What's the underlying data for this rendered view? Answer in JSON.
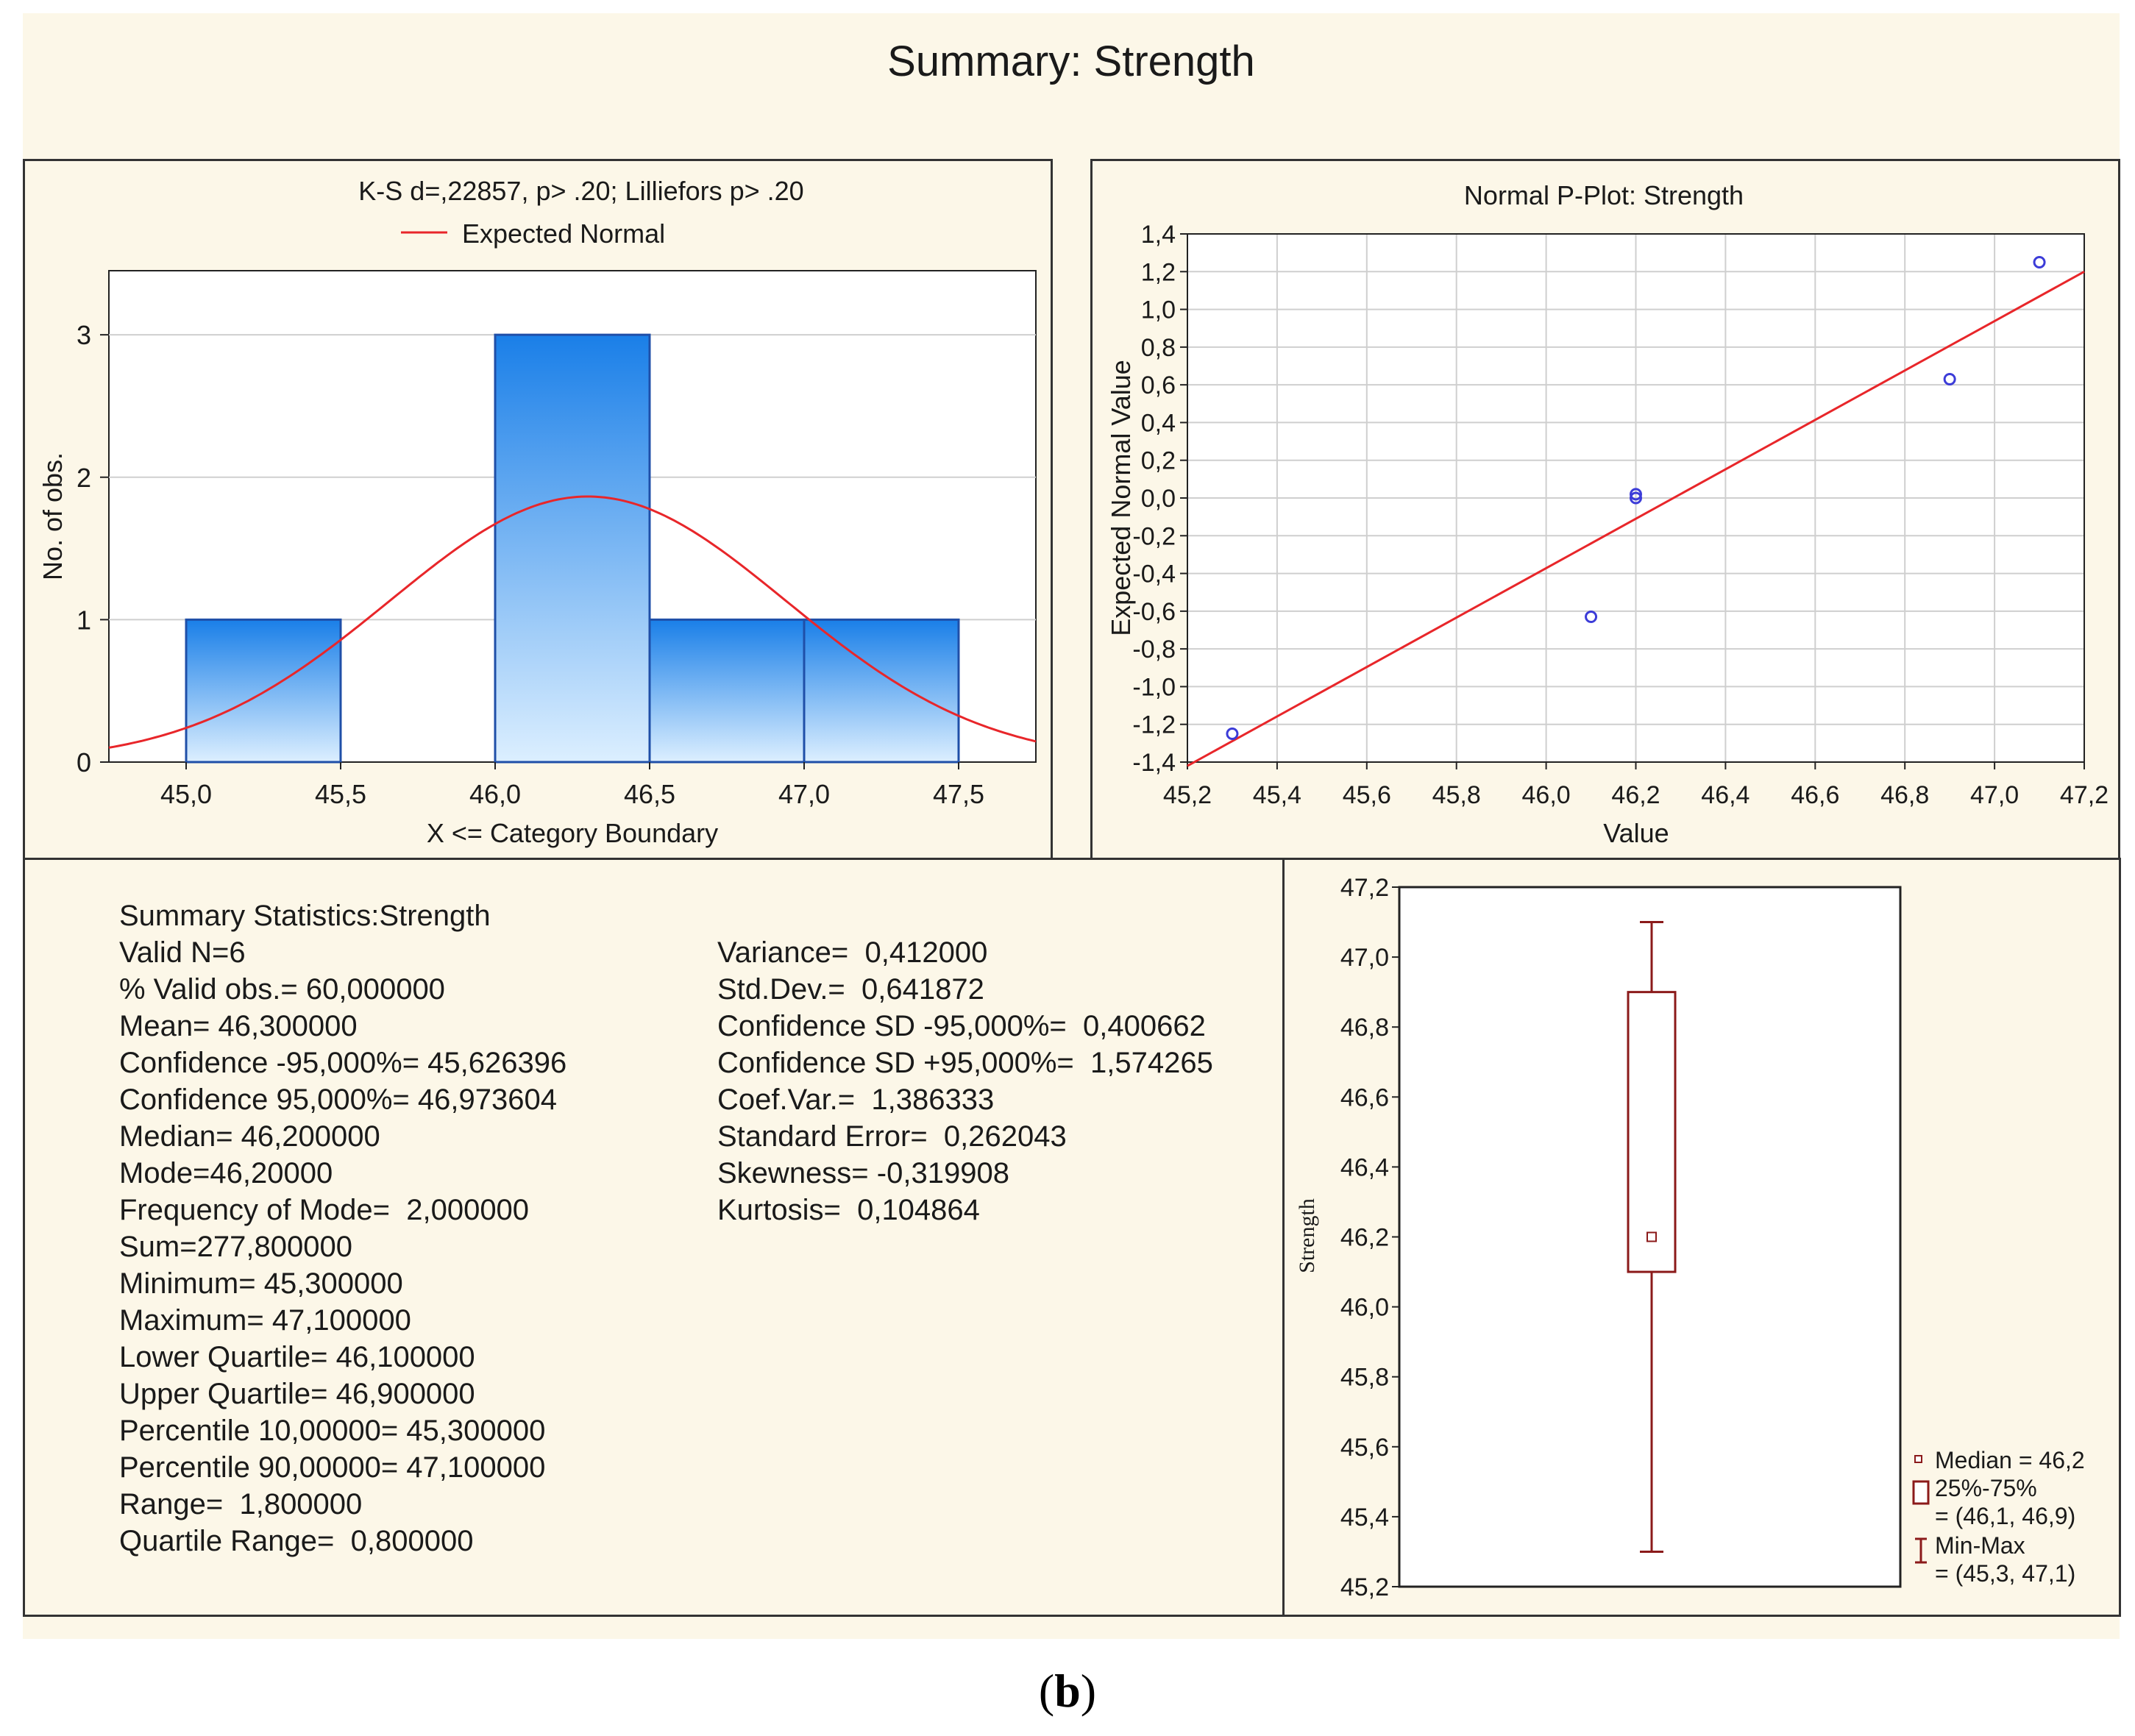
{
  "title": "Summary: Strength",
  "caption": {
    "open": "(",
    "letter": "b",
    "close": ")"
  },
  "colors": {
    "panel_bg": "#fcf7e8",
    "bar_top": "#1a7fe8",
    "bar_bottom": "#dcefff",
    "curve": "#e8262a",
    "point": "#3c3cd8",
    "box": "#8b1a1a"
  },
  "chart_data": [
    {
      "type": "bar",
      "name": "histogram",
      "title": "K-S d=,22857, p> .20; Lilliefors p> .20",
      "legend": "Expected Normal",
      "xlabel": "X <= Category Boundary",
      "ylabel": "No. of obs.",
      "xlim": [
        44.75,
        47.75
      ],
      "ylim": [
        0,
        3.45
      ],
      "xticks": [
        "45,0",
        "45,5",
        "46,0",
        "46,5",
        "47,0",
        "47,5"
      ],
      "xtick_values": [
        45.0,
        45.5,
        46.0,
        46.5,
        47.0,
        47.5
      ],
      "yticks": [
        "0",
        "1",
        "2",
        "3"
      ],
      "ytick_values": [
        0,
        1,
        2,
        3
      ],
      "bins": [
        {
          "from": 45.0,
          "to": 45.5,
          "count": 1
        },
        {
          "from": 45.5,
          "to": 46.0,
          "count": 0
        },
        {
          "from": 46.0,
          "to": 46.5,
          "count": 3
        },
        {
          "from": 46.5,
          "to": 47.0,
          "count": 1
        },
        {
          "from": 47.0,
          "to": 47.5,
          "count": 1
        }
      ],
      "normal_curve": {
        "mean": 46.3,
        "sd": 0.641872,
        "n": 6,
        "bin_width": 0.5
      }
    },
    {
      "type": "scatter",
      "name": "normal-p-plot",
      "title": "Normal P-Plot: Strength",
      "xlabel": "Value",
      "ylabel": "Expected Normal Value",
      "xlim": [
        45.2,
        47.2
      ],
      "ylim": [
        -1.4,
        1.4
      ],
      "xticks": [
        "45,2",
        "45,4",
        "45,6",
        "45,8",
        "46,0",
        "46,2",
        "46,4",
        "46,6",
        "46,8",
        "47,0",
        "47,2"
      ],
      "xtick_values": [
        45.2,
        45.4,
        45.6,
        45.8,
        46.0,
        46.2,
        46.4,
        46.6,
        46.8,
        47.0,
        47.2
      ],
      "yticks": [
        "1,4",
        "1,2",
        "1,0",
        "0,8",
        "0,6",
        "0,4",
        "0,2",
        "0,0",
        "-0,2",
        "-0,4",
        "-0,6",
        "-0,8",
        "-1,0",
        "-1,2",
        "-1,4"
      ],
      "ytick_values": [
        1.4,
        1.2,
        1.0,
        0.8,
        0.6,
        0.4,
        0.2,
        0.0,
        -0.2,
        -0.4,
        -0.6,
        -0.8,
        -1.0,
        -1.2,
        -1.4
      ],
      "points": [
        {
          "x": 45.3,
          "y": -1.25
        },
        {
          "x": 46.1,
          "y": -0.63
        },
        {
          "x": 46.2,
          "y": 0.0
        },
        {
          "x": 46.2,
          "y": 0.02
        },
        {
          "x": 46.9,
          "y": 0.63
        },
        {
          "x": 47.1,
          "y": 1.25
        }
      ],
      "line": {
        "x1": 45.2,
        "y1": -1.42,
        "x2": 47.2,
        "y2": 1.2
      }
    },
    {
      "type": "box",
      "name": "box-plot",
      "ylabel": "Strength",
      "ylim": [
        45.2,
        47.2
      ],
      "yticks": [
        "47,2",
        "47,0",
        "46,8",
        "46,6",
        "46,4",
        "46,2",
        "46,0",
        "45,8",
        "45,6",
        "45,4",
        "45,2"
      ],
      "ytick_values": [
        47.2,
        47.0,
        46.8,
        46.6,
        46.4,
        46.2,
        46.0,
        45.8,
        45.6,
        45.4,
        45.2
      ],
      "median": 46.2,
      "q1": 46.1,
      "q3": 46.9,
      "min": 45.3,
      "max": 47.1,
      "legend": [
        {
          "label": "Median = 46,2"
        },
        {
          "label": "25%-75%",
          "sub": "= (46,1, 46,9)"
        },
        {
          "label": "Min-Max",
          "sub": "= (45,3, 47,1)"
        }
      ]
    }
  ],
  "summary": {
    "left": [
      "Summary Statistics:Strength",
      "Valid N=6",
      "% Valid obs.= 60,000000",
      "Mean= 46,300000",
      "Confidence -95,000%= 45,626396",
      "Confidence 95,000%= 46,973604",
      "Median= 46,200000",
      "Mode=46,20000",
      "Frequency of Mode=  2,000000",
      "Sum=277,800000",
      "Minimum= 45,300000",
      "Maximum= 47,100000",
      "Lower Quartile= 46,100000",
      "Upper Quartile= 46,900000",
      "Percentile 10,00000= 45,300000",
      "Percentile 90,00000= 47,100000",
      "Range=  1,800000",
      "Quartile Range=  0,800000"
    ],
    "right": [
      "Variance=  0,412000",
      "Std.Dev.=  0,641872",
      "Confidence SD -95,000%=  0,400662",
      "Confidence SD +95,000%=  1,574265",
      "Coef.Var.=  1,386333",
      "Standard Error=  0,262043",
      "Skewness= -0,319908",
      "Kurtosis=  0,104864"
    ]
  }
}
